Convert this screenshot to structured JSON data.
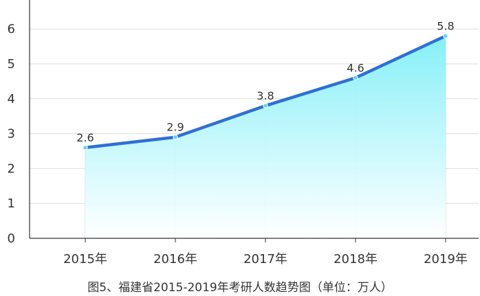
{
  "caption": "图5、福建省2015-2019年考研人数趋势图（单位：万人）",
  "chart_data": {
    "type": "area",
    "title": "图5、福建省2015-2019年考研人数趋势图（单位：万人）",
    "xlabel": "",
    "ylabel": "",
    "categories": [
      "2015年",
      "2016年",
      "2017年",
      "2018年",
      "2019年"
    ],
    "values": [
      2.6,
      2.9,
      3.8,
      4.6,
      5.8
    ],
    "data_labels": [
      "2.6",
      "2.9",
      "3.8",
      "4.6",
      "5.8"
    ],
    "ylim": [
      0,
      6.8
    ],
    "yticks": [
      "0",
      "1",
      "2",
      "3",
      "4",
      "5",
      "6"
    ],
    "grid": true,
    "legend": "none",
    "colors": {
      "line": "#2f6fd6",
      "fill_top": "#7eeff7",
      "fill_bottom": "#ffffff",
      "marker": "#5fd6e8",
      "grid": "#dddddd"
    }
  }
}
